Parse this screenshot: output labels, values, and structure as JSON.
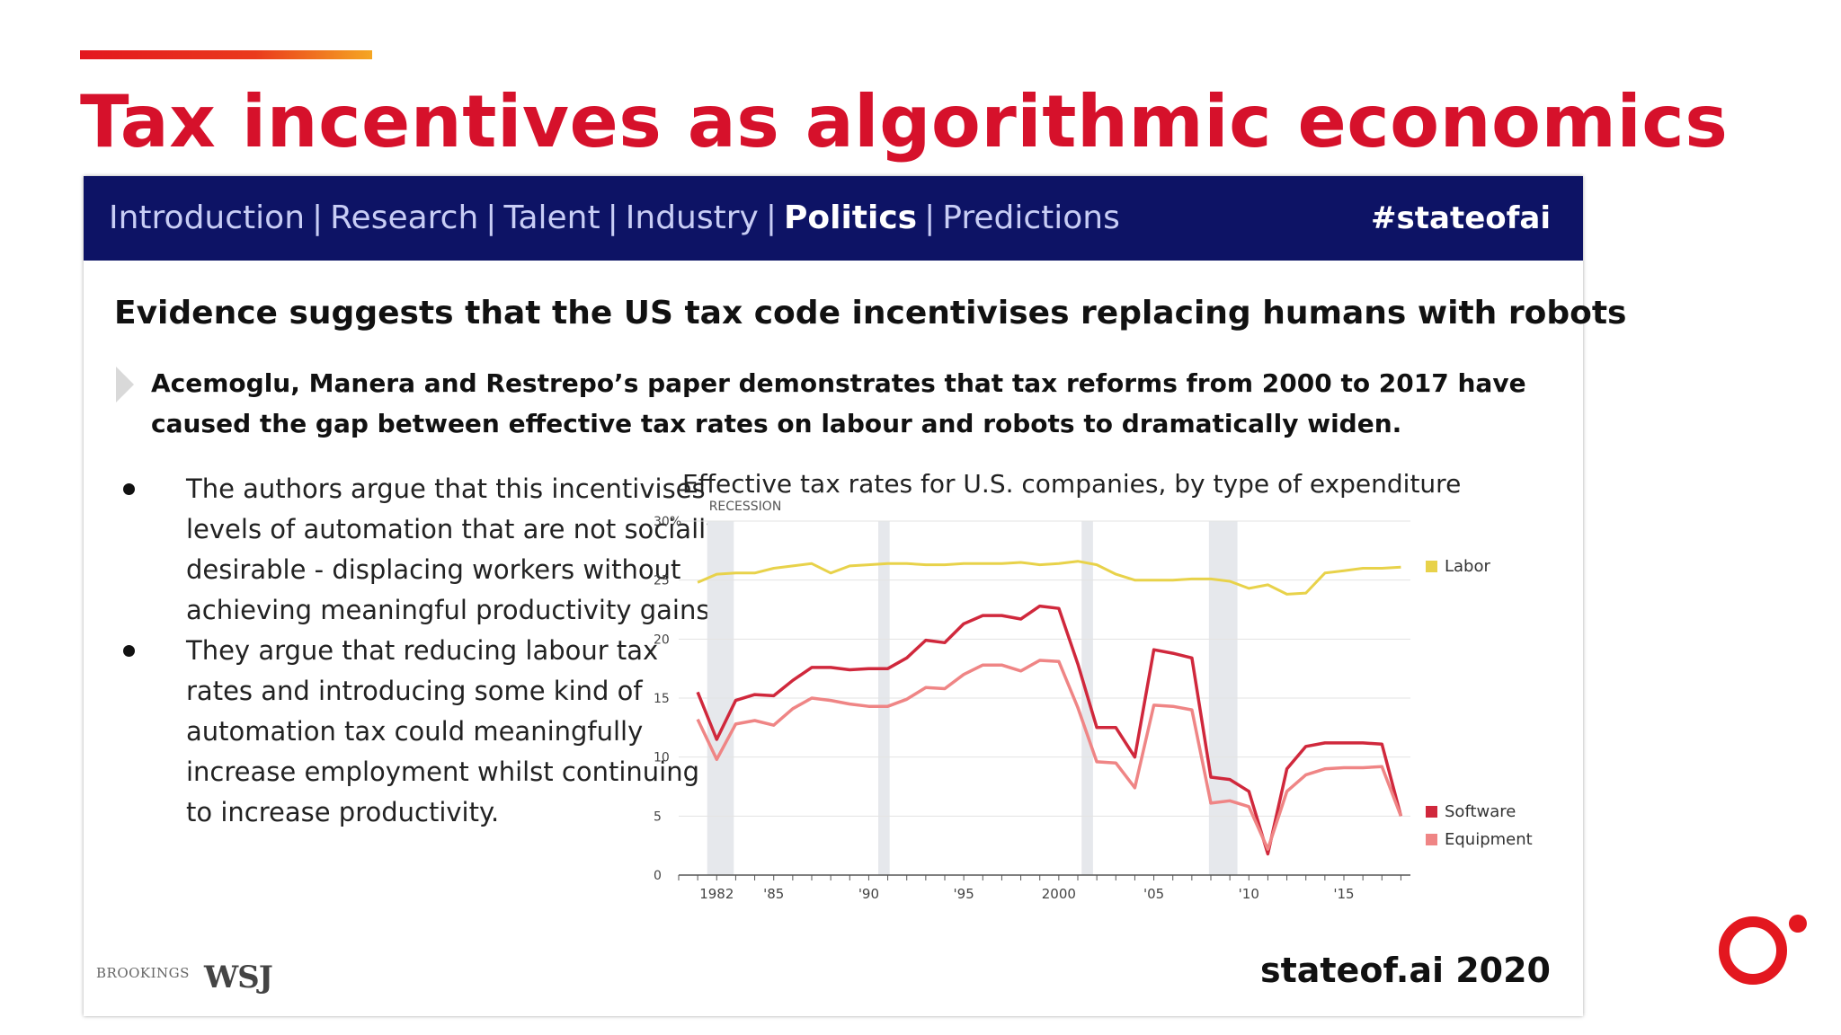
{
  "title": "Tax incentives as algorithmic economics",
  "nav": {
    "items": [
      {
        "label": "Introduction",
        "active": false
      },
      {
        "label": "Research",
        "active": false
      },
      {
        "label": "Talent",
        "active": false
      },
      {
        "label": "Industry",
        "active": false
      },
      {
        "label": "Politics",
        "active": true
      },
      {
        "label": "Predictions",
        "active": false
      }
    ],
    "separator": "|",
    "hashtag": "#stateofai"
  },
  "headline": "Evidence suggests that the US tax code incentivises replacing humans with robots",
  "intro": "Acemoglu, Manera and Restrepo’s paper demonstrates that tax reforms from 2000 to 2017 have caused the gap between effective tax rates on labour and robots to dramatically widen.",
  "bullets": [
    "The authors argue that this incentivises levels of automation that are not socially desirable - displacing workers without achieving meaningful productivity gains.",
    "They argue that reducing labour tax rates and introducing some kind of automation tax could meaningfully increase employment whilst continuing to increase productivity."
  ],
  "footer": {
    "logos": [
      "BROOKINGS",
      "WSJ"
    ],
    "brand": "stateof.ai 2020"
  },
  "colors": {
    "accent_red": "#d6112b",
    "nav_bg": "#0d1365",
    "labor": "#e8d24a",
    "software": "#d0283c",
    "equipment": "#ef8585",
    "recession": "#e6e8ec"
  },
  "chart_data": {
    "type": "line",
    "title": "Effective tax rates for U.S. companies, by type of expenditure",
    "xlabel": "",
    "ylabel": "",
    "xlim": [
      1980,
      2018.5
    ],
    "ylim": [
      0,
      30
    ],
    "yticks": [
      {
        "value": 0,
        "label": "0"
      },
      {
        "value": 5,
        "label": "5"
      },
      {
        "value": 10,
        "label": "10"
      },
      {
        "value": 15,
        "label": "15"
      },
      {
        "value": 20,
        "label": "20"
      },
      {
        "value": 25,
        "label": "25"
      },
      {
        "value": 30,
        "label": "30%"
      }
    ],
    "xticks": [
      {
        "value": 1982,
        "label": "1982"
      },
      {
        "value": 1985,
        "label": "'85"
      },
      {
        "value": 1990,
        "label": "'90"
      },
      {
        "value": 1995,
        "label": "'95"
      },
      {
        "value": 2000,
        "label": "2000"
      },
      {
        "value": 2005,
        "label": "'05"
      },
      {
        "value": 2010,
        "label": "'10"
      },
      {
        "value": 2015,
        "label": "'15"
      }
    ],
    "grid": true,
    "recession_label": "RECESSION",
    "recessions": [
      [
        1981.5,
        1982.9
      ],
      [
        1990.5,
        1991.1
      ],
      [
        2001.2,
        2001.8
      ],
      [
        2007.9,
        2009.4
      ]
    ],
    "series": [
      {
        "name": "Labor",
        "color": "#e8d24a",
        "x": [
          1981,
          1982,
          1983,
          1984,
          1985,
          1986,
          1987,
          1988,
          1989,
          1990,
          1991,
          1992,
          1993,
          1994,
          1995,
          1996,
          1997,
          1998,
          1999,
          2000,
          2001,
          2002,
          2003,
          2004,
          2005,
          2006,
          2007,
          2008,
          2009,
          2010,
          2011,
          2012,
          2013,
          2014,
          2015,
          2016,
          2017,
          2018
        ],
        "values": [
          24.8,
          25.5,
          25.6,
          25.6,
          26.0,
          26.2,
          26.4,
          25.6,
          26.2,
          26.3,
          26.4,
          26.4,
          26.3,
          26.3,
          26.4,
          26.4,
          26.4,
          26.5,
          26.3,
          26.4,
          26.6,
          26.3,
          25.5,
          25.0,
          25.0,
          25.0,
          25.1,
          25.1,
          24.9,
          24.3,
          24.6,
          23.8,
          23.9,
          25.6,
          25.8,
          26.0,
          26.0,
          26.1
        ]
      },
      {
        "name": "Software",
        "color": "#d0283c",
        "x": [
          1981,
          1982,
          1983,
          1984,
          1985,
          1986,
          1987,
          1988,
          1989,
          1990,
          1991,
          1992,
          1993,
          1994,
          1995,
          1996,
          1997,
          1998,
          1999,
          2000,
          2001,
          2002,
          2003,
          2004,
          2005,
          2006,
          2007,
          2008,
          2009,
          2010,
          2011,
          2012,
          2013,
          2014,
          2015,
          2016,
          2017,
          2018
        ],
        "values": [
          15.5,
          11.5,
          14.8,
          15.3,
          15.2,
          16.5,
          17.6,
          17.6,
          17.4,
          17.5,
          17.5,
          18.4,
          19.9,
          19.7,
          21.3,
          22.0,
          22.0,
          21.7,
          22.8,
          22.6,
          17.9,
          12.5,
          12.5,
          10.0,
          19.1,
          18.8,
          18.4,
          8.3,
          8.1,
          7.1,
          1.8,
          9.0,
          10.9,
          11.2,
          11.2,
          11.2,
          11.1,
          5.0
        ]
      },
      {
        "name": "Equipment",
        "color": "#ef8585",
        "x": [
          1981,
          1982,
          1983,
          1984,
          1985,
          1986,
          1987,
          1988,
          1989,
          1990,
          1991,
          1992,
          1993,
          1994,
          1995,
          1996,
          1997,
          1998,
          1999,
          2000,
          2001,
          2002,
          2003,
          2004,
          2005,
          2006,
          2007,
          2008,
          2009,
          2010,
          2011,
          2012,
          2013,
          2014,
          2015,
          2016,
          2017,
          2018
        ],
        "values": [
          13.2,
          9.8,
          12.8,
          13.1,
          12.7,
          14.1,
          15.0,
          14.8,
          14.5,
          14.3,
          14.3,
          14.9,
          15.9,
          15.8,
          17.0,
          17.8,
          17.8,
          17.3,
          18.2,
          18.1,
          14.2,
          9.6,
          9.5,
          7.4,
          14.4,
          14.3,
          14.0,
          6.1,
          6.3,
          5.8,
          2.2,
          7.1,
          8.5,
          9.0,
          9.1,
          9.1,
          9.2,
          5.0
        ]
      }
    ],
    "legend_placement": "right, at line ends"
  }
}
